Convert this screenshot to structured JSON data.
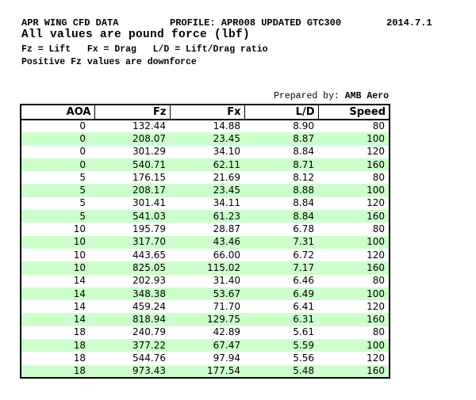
{
  "header": {
    "title": "APR WING CFD DATA",
    "profile": "PROFILE: APR008 UPDATED GTC300",
    "date": "2014.7.1",
    "units_note": "All values are pound force (lbf)",
    "abbreviation_key": "Fz = Lift   Fx = Drag   L/D = Lift/Drag ratio",
    "downforce_note": "Positive Fz values are downforce"
  },
  "prepared_by": {
    "label": "Prepared by: ",
    "value": "AMB Aero"
  },
  "table": {
    "columns": [
      "AOA",
      "Fz",
      "Fx",
      "L/D",
      "Speed"
    ],
    "rows": [
      [
        "0",
        "132.44",
        "14.88",
        "8.90",
        "80"
      ],
      [
        "0",
        "208.07",
        "23.45",
        "8.87",
        "100"
      ],
      [
        "0",
        "301.29",
        "34.10",
        "8.84",
        "120"
      ],
      [
        "0",
        "540.71",
        "62.11",
        "8.71",
        "160"
      ],
      [
        "5",
        "176.15",
        "21.69",
        "8.12",
        "80"
      ],
      [
        "5",
        "208.17",
        "23.45",
        "8.88",
        "100"
      ],
      [
        "5",
        "301.41",
        "34.11",
        "8.84",
        "120"
      ],
      [
        "5",
        "541.03",
        "61.23",
        "8.84",
        "160"
      ],
      [
        "10",
        "195.79",
        "28.87",
        "6.78",
        "80"
      ],
      [
        "10",
        "317.70",
        "43.46",
        "7.31",
        "100"
      ],
      [
        "10",
        "443.65",
        "66.00",
        "6.72",
        "120"
      ],
      [
        "10",
        "825.05",
        "115.02",
        "7.17",
        "160"
      ],
      [
        "14",
        "202.93",
        "31.40",
        "6.46",
        "80"
      ],
      [
        "14",
        "348.38",
        "53.67",
        "6.49",
        "100"
      ],
      [
        "14",
        "459.24",
        "71.70",
        "6.41",
        "120"
      ],
      [
        "14",
        "818.94",
        "129.75",
        "6.31",
        "160"
      ],
      [
        "18",
        "240.79",
        "42.89",
        "5.61",
        "80"
      ],
      [
        "18",
        "377.22",
        "67.47",
        "5.59",
        "100"
      ],
      [
        "18",
        "544.76",
        "97.94",
        "5.56",
        "120"
      ],
      [
        "18",
        "973.43",
        "177.54",
        "5.48",
        "160"
      ]
    ]
  },
  "colors": {
    "stripe_green": "#ccffcc",
    "border_black": "#000000",
    "text_black": "#000000",
    "background_white": "#ffffff"
  },
  "chart_data": {
    "type": "table",
    "title": "APR WING CFD DATA — APR008 UPDATED GTC300",
    "columns": [
      "AOA",
      "Fz",
      "Fx",
      "L/D",
      "Speed"
    ],
    "rows": [
      [
        0,
        132.44,
        14.88,
        8.9,
        80
      ],
      [
        0,
        208.07,
        23.45,
        8.87,
        100
      ],
      [
        0,
        301.29,
        34.1,
        8.84,
        120
      ],
      [
        0,
        540.71,
        62.11,
        8.71,
        160
      ],
      [
        5,
        176.15,
        21.69,
        8.12,
        80
      ],
      [
        5,
        208.17,
        23.45,
        8.88,
        100
      ],
      [
        5,
        301.41,
        34.11,
        8.84,
        120
      ],
      [
        5,
        541.03,
        61.23,
        8.84,
        160
      ],
      [
        10,
        195.79,
        28.87,
        6.78,
        80
      ],
      [
        10,
        317.7,
        43.46,
        7.31,
        100
      ],
      [
        10,
        443.65,
        66.0,
        6.72,
        120
      ],
      [
        10,
        825.05,
        115.02,
        7.17,
        160
      ],
      [
        14,
        202.93,
        31.4,
        6.46,
        80
      ],
      [
        14,
        348.38,
        53.67,
        6.49,
        100
      ],
      [
        14,
        459.24,
        71.7,
        6.41,
        120
      ],
      [
        14,
        818.94,
        129.75,
        6.31,
        160
      ],
      [
        18,
        240.79,
        42.89,
        5.61,
        80
      ],
      [
        18,
        377.22,
        67.47,
        5.59,
        100
      ],
      [
        18,
        544.76,
        97.94,
        5.56,
        120
      ],
      [
        18,
        973.43,
        177.54,
        5.48,
        160
      ]
    ]
  }
}
